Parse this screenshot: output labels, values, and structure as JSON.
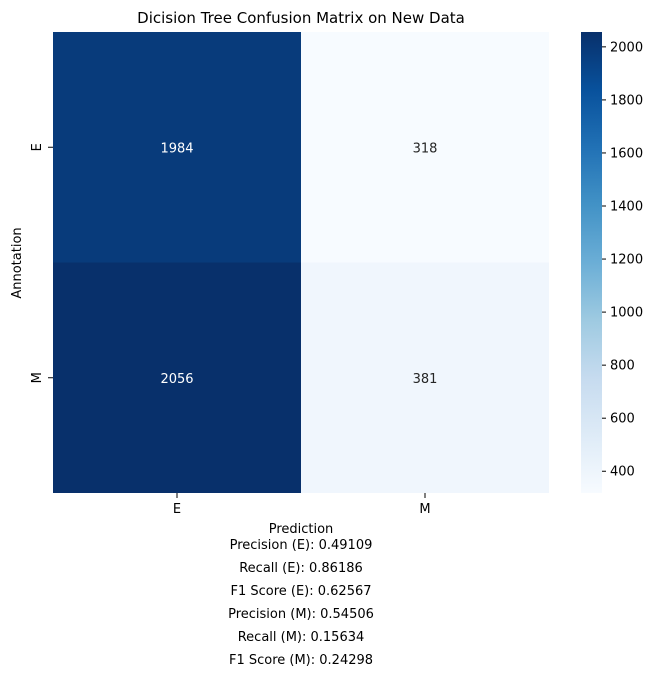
{
  "chart_data": {
    "type": "heatmap",
    "title": "Dicision Tree Confusion Matrix on New Data",
    "xlabel": "Prediction",
    "ylabel": "Annotation",
    "x_categories": [
      "E",
      "M"
    ],
    "y_categories": [
      "E",
      "M"
    ],
    "values": [
      [
        1984,
        318
      ],
      [
        2056,
        381
      ]
    ],
    "colormap": "Blues",
    "color_range": [
      318,
      2056
    ],
    "colorbar_ticks": [
      400,
      600,
      800,
      1000,
      1200,
      1400,
      1600,
      1800,
      2000
    ],
    "colorbar_tick_labels": [
      "400",
      "600",
      "800",
      "1000",
      "1200",
      "1400",
      "1600",
      "1800",
      "2000"
    ]
  },
  "metrics": [
    "Precision (E): 0.49109",
    "Recall (E): 0.86186",
    "F1 Score (E): 0.62567",
    "Precision (M): 0.54506",
    "Recall (M): 0.15634",
    "F1 Score (M): 0.24298"
  ],
  "colors": {
    "text_light": "#ffffff",
    "text_dark": "#262626",
    "axis": "#000000"
  }
}
